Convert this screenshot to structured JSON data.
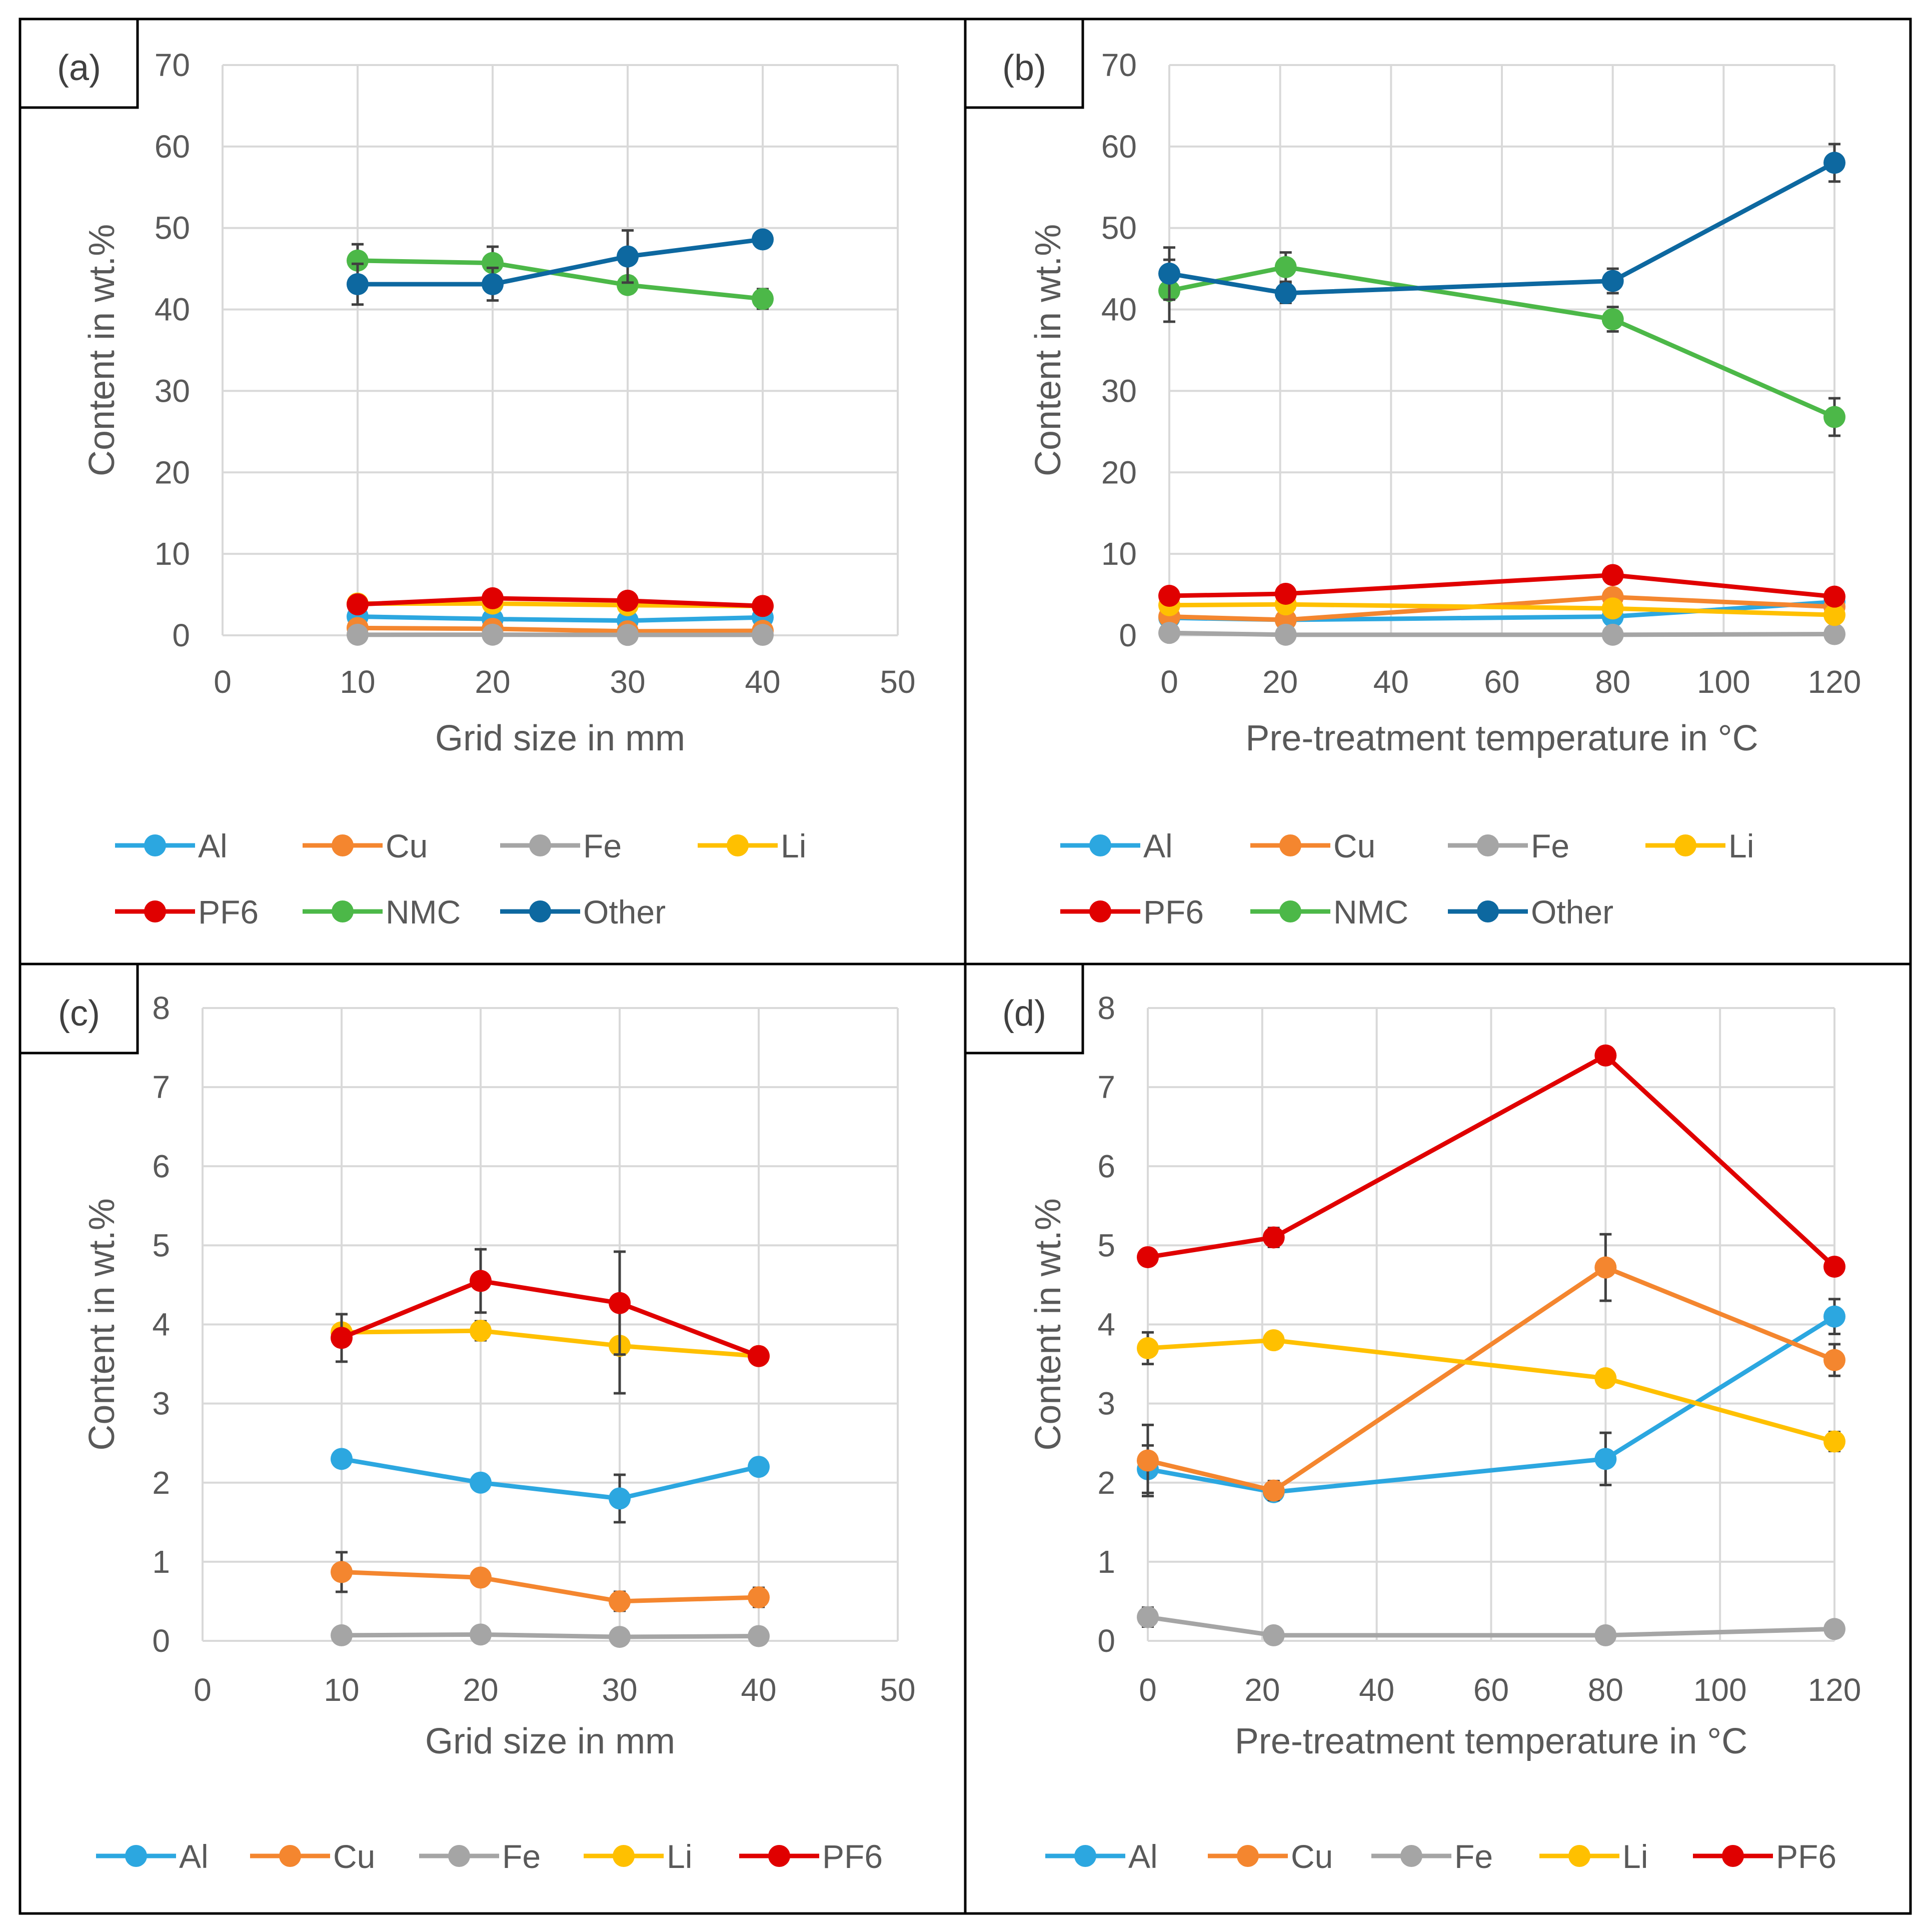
{
  "figure": {
    "background": "#ffffff"
  },
  "colors": {
    "Al": "#2ca7e0",
    "Cu": "#f4862f",
    "Fe": "#a5a5a5",
    "Li": "#ffc000",
    "PF6": "#e00000",
    "NMC": "#4cb848",
    "Other": "#0d68a0"
  },
  "chart_data": [
    {
      "id": "a",
      "label": "(a)",
      "type": "line",
      "xlabel": "Grid size in mm",
      "ylabel": "Content in wt.%",
      "xlim": [
        0,
        50
      ],
      "xticks": [
        0,
        10,
        20,
        30,
        40,
        50
      ],
      "ylim": [
        0,
        70
      ],
      "yticks": [
        0,
        10,
        20,
        30,
        40,
        50,
        60,
        70
      ],
      "grid": true,
      "legend_order": [
        "Al",
        "Cu",
        "Fe",
        "Li",
        "PF6",
        "NMC",
        "Other"
      ],
      "x": [
        10,
        20,
        30,
        40
      ],
      "series": [
        {
          "name": "Al",
          "values": [
            2.3,
            2.0,
            1.8,
            2.2
          ],
          "errors": [
            0.1,
            0.1,
            0.3,
            0.1
          ]
        },
        {
          "name": "Cu",
          "values": [
            0.9,
            0.8,
            0.5,
            0.55
          ],
          "errors": [
            0.2,
            0.1,
            0.1,
            0.1
          ]
        },
        {
          "name": "Fe",
          "values": [
            0.07,
            0.08,
            0.05,
            0.06
          ],
          "errors": [
            0,
            0,
            0,
            0
          ]
        },
        {
          "name": "Li",
          "values": [
            3.9,
            3.9,
            3.7,
            3.6
          ],
          "errors": [
            0.1,
            0.1,
            0.6,
            0.1
          ]
        },
        {
          "name": "PF6",
          "values": [
            3.8,
            4.55,
            4.25,
            3.6
          ],
          "errors": [
            0.3,
            0.4,
            0.7,
            0.1
          ]
        },
        {
          "name": "NMC",
          "values": [
            46.0,
            45.7,
            43.0,
            41.3
          ],
          "errors": [
            2.0,
            2.0,
            1.0,
            1.2
          ]
        },
        {
          "name": "Other",
          "values": [
            43.1,
            43.1,
            46.5,
            48.6
          ],
          "errors": [
            2.5,
            2.0,
            3.2,
            0.5
          ]
        }
      ]
    },
    {
      "id": "b",
      "label": "(b)",
      "type": "line",
      "xlabel": "Pre-treatment temperature in °C",
      "ylabel": "Content in wt.%",
      "xlim": [
        0,
        120
      ],
      "xticks": [
        0,
        20,
        40,
        60,
        80,
        100,
        120
      ],
      "ylim": [
        0,
        70
      ],
      "yticks": [
        0,
        10,
        20,
        30,
        40,
        50,
        60,
        70
      ],
      "grid": true,
      "legend_order": [
        "Al",
        "Cu",
        "Fe",
        "Li",
        "PF6",
        "NMC",
        "Other"
      ],
      "x": [
        0,
        21,
        80,
        120
      ],
      "series": [
        {
          "name": "Al",
          "values": [
            2.15,
            1.9,
            2.3,
            4.1
          ],
          "errors": [
            0.3,
            0.1,
            0.3,
            0.2
          ]
        },
        {
          "name": "Cu",
          "values": [
            2.3,
            1.9,
            4.7,
            3.5
          ],
          "errors": [
            0.4,
            0.1,
            0.4,
            0.2
          ]
        },
        {
          "name": "Fe",
          "values": [
            0.3,
            0.07,
            0.07,
            0.15
          ],
          "errors": [
            0.1,
            0,
            0,
            0
          ]
        },
        {
          "name": "Li",
          "values": [
            3.7,
            3.8,
            3.3,
            2.5
          ],
          "errors": [
            0.2,
            0.1,
            0.1,
            0.1
          ]
        },
        {
          "name": "PF6",
          "values": [
            4.85,
            5.1,
            7.4,
            4.75
          ],
          "errors": [
            0.05,
            0.1,
            0.1,
            0.05
          ]
        },
        {
          "name": "NMC",
          "values": [
            42.3,
            45.2,
            38.8,
            26.8
          ],
          "errors": [
            3.8,
            1.8,
            1.5,
            2.3
          ]
        },
        {
          "name": "Other",
          "values": [
            44.4,
            42.0,
            43.5,
            58.0
          ],
          "errors": [
            3.2,
            1.2,
            1.5,
            2.3
          ]
        }
      ]
    },
    {
      "id": "c",
      "label": "(c)",
      "type": "line",
      "xlabel": "Grid size in mm",
      "ylabel": "Content in wt.%",
      "xlim": [
        0,
        50
      ],
      "xticks": [
        0,
        10,
        20,
        30,
        40,
        50
      ],
      "ylim": [
        0,
        8
      ],
      "yticks": [
        0,
        1,
        2,
        3,
        4,
        5,
        6,
        7,
        8
      ],
      "grid": true,
      "legend_order": [
        "Al",
        "Cu",
        "Fe",
        "Li",
        "PF6"
      ],
      "x": [
        10,
        20,
        30,
        40
      ],
      "series": [
        {
          "name": "Al",
          "values": [
            2.3,
            2.0,
            1.8,
            2.2
          ],
          "errors": [
            0.05,
            0.1,
            0.3,
            0.05
          ]
        },
        {
          "name": "Cu",
          "values": [
            0.87,
            0.8,
            0.5,
            0.55
          ],
          "errors": [
            0.25,
            0.05,
            0.12,
            0.12
          ]
        },
        {
          "name": "Fe",
          "values": [
            0.07,
            0.08,
            0.05,
            0.06
          ],
          "errors": [
            0,
            0,
            0,
            0
          ]
        },
        {
          "name": "Li",
          "values": [
            3.9,
            3.92,
            3.73,
            3.6
          ],
          "errors": [
            0.1,
            0.12,
            0.6,
            0.08
          ]
        },
        {
          "name": "PF6",
          "values": [
            3.83,
            4.55,
            4.27,
            3.6
          ],
          "errors": [
            0.3,
            0.4,
            0.65,
            0.05
          ]
        }
      ]
    },
    {
      "id": "d",
      "label": "(d)",
      "type": "line",
      "xlabel": "Pre-treatment temperature in °C",
      "ylabel": "Content in wt.%",
      "xlim": [
        0,
        120
      ],
      "xticks": [
        0,
        20,
        40,
        60,
        80,
        100,
        120
      ],
      "ylim": [
        0,
        8
      ],
      "yticks": [
        0,
        1,
        2,
        3,
        4,
        5,
        6,
        7,
        8
      ],
      "grid": true,
      "legend_order": [
        "Al",
        "Cu",
        "Fe",
        "Li",
        "PF6"
      ],
      "x": [
        0,
        22,
        80,
        120
      ],
      "series": [
        {
          "name": "Al",
          "values": [
            2.17,
            1.88,
            2.3,
            4.1
          ],
          "errors": [
            0.3,
            0.1,
            0.33,
            0.22
          ]
        },
        {
          "name": "Cu",
          "values": [
            2.28,
            1.9,
            4.72,
            3.55
          ],
          "errors": [
            0.45,
            0.12,
            0.42,
            0.2
          ]
        },
        {
          "name": "Fe",
          "values": [
            0.3,
            0.07,
            0.07,
            0.15
          ],
          "errors": [
            0.12,
            0,
            0,
            0
          ]
        },
        {
          "name": "Li",
          "values": [
            3.7,
            3.8,
            3.32,
            2.52
          ],
          "errors": [
            0.2,
            0.08,
            0.1,
            0.12
          ]
        },
        {
          "name": "PF6",
          "values": [
            4.85,
            5.1,
            7.4,
            4.73
          ],
          "errors": [
            0.05,
            0.12,
            0.1,
            0.05
          ]
        }
      ]
    }
  ]
}
